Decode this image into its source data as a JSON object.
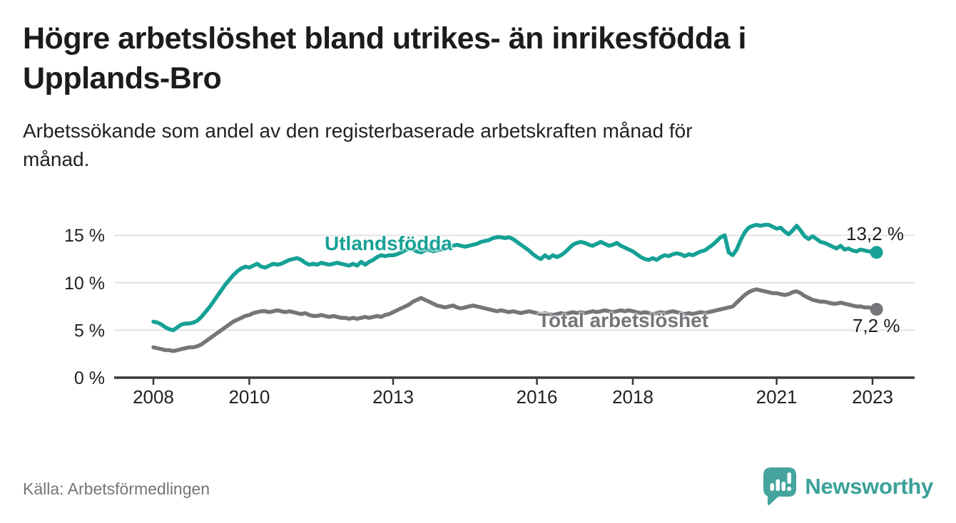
{
  "header": {
    "title_line1": "Högre arbetslöshet bland utrikes- än inrikesfödda i",
    "title_line2": "Upplands-Bro",
    "subtitle_line1": "Arbetssökande som andel av den registerbaserade arbetskraften månad för",
    "subtitle_line2": "månad."
  },
  "chart_data": {
    "type": "line",
    "title": "Högre arbetslöshet bland utrikes- än inrikesfödda i Upplands-Bro",
    "subtitle": "Arbetssökande som andel av den registerbaserade arbetskraften månad för månad.",
    "unit": "%",
    "x_start_year": 2008,
    "x_interval": "monthly",
    "x_end": "2023-02",
    "ylim": [
      0,
      17
    ],
    "grid": "horizontal",
    "colors": {
      "axis": "#3a3a3c",
      "gridline": "#e3e3e3",
      "tick_text": "#222222"
    },
    "y_ticks": [
      {
        "value": 15,
        "label": "15 %"
      },
      {
        "value": 10,
        "label": "10 %"
      },
      {
        "value": 5,
        "label": "5 %"
      },
      {
        "value": 0,
        "label": "0 %"
      }
    ],
    "x_ticks": [
      {
        "year": 2008,
        "label": "2008"
      },
      {
        "year": 2010,
        "label": "2010"
      },
      {
        "year": 2013,
        "label": "2013"
      },
      {
        "year": 2016,
        "label": "2016"
      },
      {
        "year": 2018,
        "label": "2018"
      },
      {
        "year": 2021,
        "label": "2021"
      },
      {
        "year": 2023,
        "label": "2023"
      }
    ],
    "series": [
      {
        "name": "Utlandsfödda",
        "color": "#16a195",
        "end_label": "13,2 %",
        "end_value": 13.2,
        "values": [
          5.9,
          5.8,
          5.6,
          5.3,
          5.1,
          5.0,
          5.3,
          5.6,
          5.7,
          5.7,
          5.8,
          6.0,
          6.4,
          6.9,
          7.4,
          8.0,
          8.6,
          9.2,
          9.8,
          10.3,
          10.8,
          11.2,
          11.5,
          11.7,
          11.6,
          11.8,
          12.0,
          11.7,
          11.6,
          11.8,
          12.0,
          11.9,
          12.0,
          12.2,
          12.4,
          12.5,
          12.6,
          12.4,
          12.1,
          11.9,
          12.0,
          11.9,
          12.1,
          12.0,
          11.9,
          12.0,
          12.1,
          12.0,
          11.9,
          11.8,
          12.0,
          11.8,
          12.2,
          11.9,
          12.2,
          12.4,
          12.7,
          12.9,
          12.8,
          12.9,
          12.9,
          13.0,
          13.2,
          13.4,
          13.6,
          13.5,
          13.3,
          13.2,
          13.4,
          13.5,
          13.3,
          13.4,
          13.5,
          13.6,
          13.8,
          13.9,
          14.0,
          13.9,
          13.8,
          13.9,
          14.0,
          14.1,
          14.3,
          14.4,
          14.5,
          14.7,
          14.8,
          14.8,
          14.7,
          14.8,
          14.6,
          14.3,
          14.0,
          13.7,
          13.4,
          13.0,
          12.7,
          12.5,
          12.9,
          12.6,
          12.9,
          12.7,
          12.9,
          13.2,
          13.6,
          14.0,
          14.2,
          14.3,
          14.2,
          14.0,
          13.9,
          14.1,
          14.3,
          14.1,
          13.9,
          14.0,
          14.2,
          13.9,
          13.7,
          13.5,
          13.3,
          13.0,
          12.7,
          12.5,
          12.4,
          12.6,
          12.4,
          12.7,
          12.9,
          12.8,
          13.0,
          13.1,
          13.0,
          12.8,
          13.0,
          12.9,
          13.1,
          13.3,
          13.4,
          13.7,
          14.0,
          14.4,
          14.8,
          15.0,
          13.2,
          12.9,
          13.5,
          14.5,
          15.3,
          15.8,
          16.0,
          16.1,
          16.0,
          16.1,
          16.1,
          15.9,
          15.7,
          15.8,
          15.4,
          15.1,
          15.5,
          16.0,
          15.5,
          14.9,
          14.6,
          14.9,
          14.6,
          14.3,
          14.2,
          14.0,
          13.8,
          13.6,
          13.9,
          13.5,
          13.6,
          13.4,
          13.3,
          13.5,
          13.4,
          13.3,
          13.3,
          13.2
        ]
      },
      {
        "name": "Total arbetslöshet",
        "color": "#75757a",
        "end_label": "7,2 %",
        "end_value": 7.2,
        "values": [
          3.2,
          3.1,
          3.0,
          2.9,
          2.9,
          2.8,
          2.9,
          3.0,
          3.1,
          3.2,
          3.2,
          3.3,
          3.5,
          3.8,
          4.1,
          4.4,
          4.7,
          5.0,
          5.3,
          5.6,
          5.9,
          6.1,
          6.3,
          6.5,
          6.6,
          6.8,
          6.9,
          7.0,
          7.0,
          6.9,
          7.0,
          7.1,
          7.0,
          6.9,
          7.0,
          6.9,
          6.8,
          6.7,
          6.8,
          6.6,
          6.5,
          6.5,
          6.6,
          6.5,
          6.4,
          6.5,
          6.4,
          6.3,
          6.3,
          6.2,
          6.3,
          6.2,
          6.3,
          6.4,
          6.3,
          6.4,
          6.5,
          6.4,
          6.6,
          6.7,
          6.9,
          7.1,
          7.3,
          7.5,
          7.7,
          8.0,
          8.2,
          8.4,
          8.2,
          8.0,
          7.8,
          7.6,
          7.5,
          7.4,
          7.5,
          7.6,
          7.4,
          7.3,
          7.4,
          7.5,
          7.6,
          7.5,
          7.4,
          7.3,
          7.2,
          7.1,
          7.0,
          7.1,
          7.0,
          6.9,
          7.0,
          6.9,
          6.8,
          6.9,
          7.0,
          6.9,
          6.8,
          6.7,
          6.8,
          6.7,
          6.6,
          6.7,
          6.8,
          6.7,
          6.8,
          6.9,
          6.8,
          6.9,
          6.8,
          6.9,
          7.0,
          6.9,
          7.0,
          7.1,
          7.0,
          6.9,
          7.0,
          7.1,
          7.0,
          7.1,
          7.0,
          6.9,
          6.8,
          6.9,
          6.8,
          6.7,
          6.8,
          6.9,
          6.8,
          6.9,
          7.0,
          6.9,
          6.8,
          6.7,
          6.8,
          6.7,
          6.8,
          6.9,
          6.8,
          6.9,
          7.0,
          7.1,
          7.2,
          7.3,
          7.4,
          7.5,
          7.9,
          8.3,
          8.7,
          9.0,
          9.2,
          9.3,
          9.2,
          9.1,
          9.0,
          8.9,
          8.9,
          8.8,
          8.7,
          8.8,
          9.0,
          9.1,
          8.9,
          8.6,
          8.4,
          8.2,
          8.1,
          8.0,
          8.0,
          7.9,
          7.8,
          7.8,
          7.9,
          7.8,
          7.7,
          7.6,
          7.5,
          7.5,
          7.4,
          7.4,
          7.3,
          7.2
        ]
      }
    ]
  },
  "footer": {
    "source": "Källa: Arbetsförmedlingen",
    "brand": "Newsworthy",
    "brand_color": "#3ba19a"
  }
}
